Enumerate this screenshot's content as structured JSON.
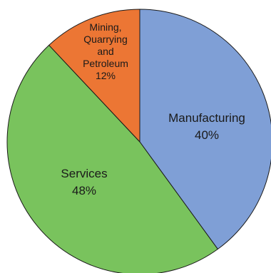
{
  "chart_data": {
    "type": "pie",
    "slices": [
      {
        "label": "Manufacturing",
        "value": 40,
        "value_label": "40%",
        "color": "#7F9FD6"
      },
      {
        "label": "Services",
        "value": 48,
        "value_label": "48%",
        "color": "#79C35D"
      },
      {
        "label": "Mining, Quarrying and Petroleum",
        "value": 12,
        "value_label": "12%",
        "color": "#EC7634"
      }
    ],
    "start": "12 o'clock",
    "direction": "clockwise",
    "legend": "none"
  }
}
